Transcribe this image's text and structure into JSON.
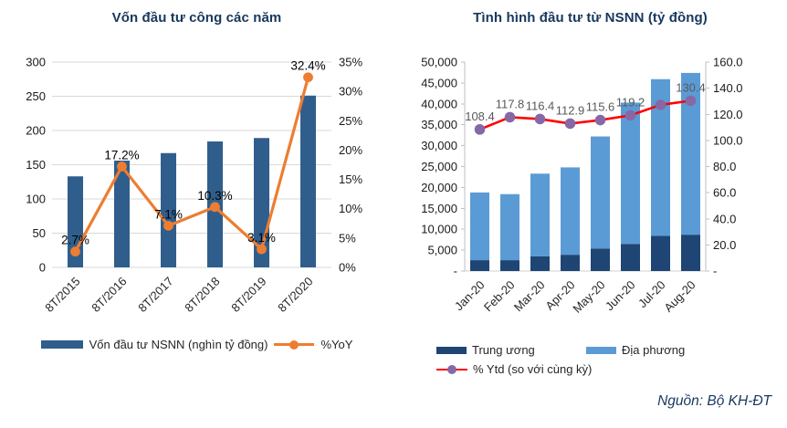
{
  "page": {
    "source_note": "Nguồn: Bộ KH-ĐT"
  },
  "chart_data": [
    {
      "type": "bar-line-combo",
      "title": "Vốn đầu tư công các năm",
      "categories": [
        "8T/2015",
        "8T/2016",
        "8T/2017",
        "8T/2018",
        "8T/2019",
        "8T/2020"
      ],
      "bar_series": [
        {
          "name": "Vốn đầu tư NSNN (nghìn tỷ đồng)",
          "color": "#2F5E8C",
          "values": [
            133,
            156,
            167,
            184,
            189,
            251
          ]
        }
      ],
      "line_series": [
        {
          "name": "%YoY",
          "color": "#ED7D31",
          "marker_color": "#ED7D31",
          "values": [
            2.7,
            17.2,
            7.1,
            10.3,
            3.1,
            32.4
          ],
          "labels": [
            "2.7%",
            "17.2%",
            "7.1%",
            "10.3%",
            "3.1%",
            "32.4%"
          ]
        }
      ],
      "y_left": {
        "min": 0,
        "max": 300,
        "step": 50,
        "tick_labels": [
          "0",
          "50",
          "100",
          "150",
          "200",
          "250",
          "300"
        ]
      },
      "y_right": {
        "min": 0,
        "max": 35,
        "step": 5,
        "tick_labels": [
          "0%",
          "5%",
          "10%",
          "15%",
          "20%",
          "25%",
          "30%",
          "35%"
        ]
      },
      "grid": true,
      "axis_lines": false,
      "legend_position": "bottom"
    },
    {
      "type": "stacked-bar-line-combo",
      "title": "Tình hình đầu tư từ NSNN (tỷ đồng)",
      "categories": [
        "Jan-20",
        "Feb-20",
        "Mar-20",
        "Apr-20",
        "May-20",
        "Jun-20",
        "Jul-20",
        "Aug-20"
      ],
      "bar_series": [
        {
          "name": "Trung ương",
          "color": "#1E4574",
          "values": [
            2600,
            2600,
            3500,
            3900,
            5400,
            6500,
            8400,
            8700
          ]
        },
        {
          "name": "Địa phương",
          "color": "#5B9BD5",
          "values": [
            16200,
            15800,
            19800,
            20900,
            26800,
            33800,
            37500,
            38700
          ]
        }
      ],
      "line_series": [
        {
          "name": "% Ytd (so với cùng kỳ)",
          "color": "#FF0000",
          "marker_color": "#8668A7",
          "values": [
            108.4,
            117.8,
            116.4,
            112.9,
            115.6,
            119.2,
            127.2,
            130.4
          ],
          "labels": [
            "108.4",
            "117.8",
            "116.4",
            "112.9",
            "115.6",
            "119.2",
            null,
            "130.4"
          ]
        }
      ],
      "y_left": {
        "min": 0,
        "max": 50000,
        "step": 5000,
        "tick_labels": [
          "-",
          "5,000",
          "10,000",
          "15,000",
          "20,000",
          "25,000",
          "30,000",
          "35,000",
          "40,000",
          "45,000",
          "50,000"
        ]
      },
      "y_right": {
        "min": 0,
        "max": 160,
        "step": 20,
        "tick_labels": [
          "-",
          "20.0",
          "40.0",
          "60.0",
          "80.0",
          "100.0",
          "120.0",
          "140.0",
          "160.0"
        ]
      },
      "grid": false,
      "axis_lines": true,
      "legend_position": "bottom"
    }
  ]
}
